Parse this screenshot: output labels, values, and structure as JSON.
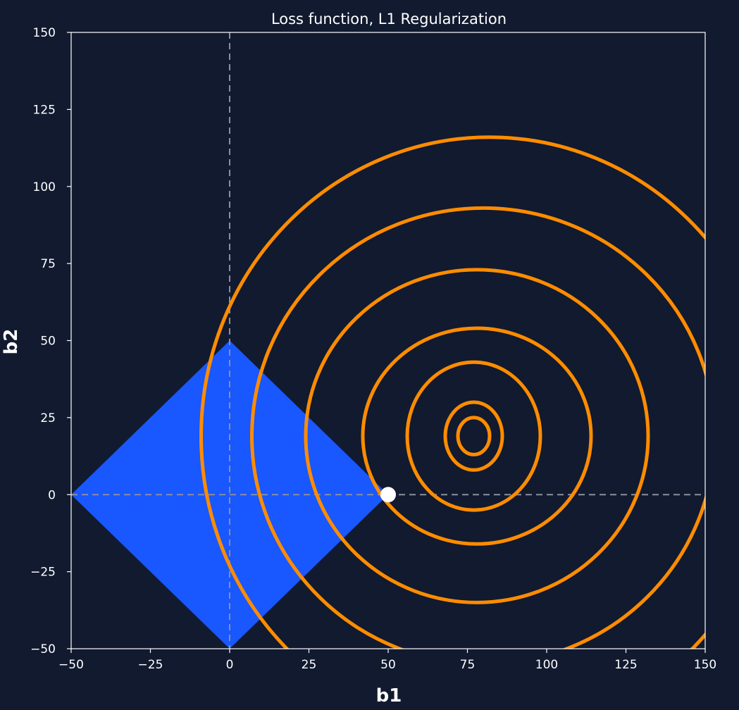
{
  "chart_data": {
    "type": "contour",
    "title": "Loss function, L1 Regularization",
    "xlabel": "b1",
    "ylabel": "b2",
    "xlim": [
      -50,
      150
    ],
    "ylim": [
      -50,
      150
    ],
    "xticks": [
      -50,
      -25,
      0,
      25,
      50,
      75,
      100,
      125,
      150
    ],
    "yticks": [
      -50,
      -25,
      0,
      25,
      50,
      75,
      100,
      125,
      150
    ],
    "constraint_region": {
      "shape": "L1 diamond",
      "vertices": [
        [
          50,
          0
        ],
        [
          0,
          50
        ],
        [
          -50,
          0
        ],
        [
          0,
          -50
        ]
      ],
      "color": "#1957ff"
    },
    "loss_contours": {
      "color": "#ff8c00",
      "levels": [
        {
          "center": [
            77,
            19
          ],
          "rx": 5,
          "ry": 6
        },
        {
          "center": [
            77,
            19
          ],
          "rx": 9,
          "ry": 11
        },
        {
          "center": [
            77,
            19
          ],
          "rx": 21,
          "ry": 24
        },
        {
          "center": [
            78,
            19
          ],
          "rx": 36,
          "ry": 35
        },
        {
          "center": [
            78,
            19
          ],
          "rx": 54,
          "ry": 54
        },
        {
          "center": [
            80,
            19
          ],
          "rx": 73,
          "ry": 74
        },
        {
          "center": [
            82,
            19
          ],
          "rx": 91,
          "ry": 97
        }
      ]
    },
    "reference_lines": [
      {
        "orientation": "vertical",
        "value": 0,
        "style": "dashed",
        "color": "#8a8f9c"
      },
      {
        "orientation": "horizontal",
        "value": 0,
        "style": "dashed",
        "color": "#8a8f9c"
      }
    ],
    "solution_point": {
      "x": 50,
      "y": 0,
      "color": "#ffffff"
    },
    "background": "#111a2f",
    "axis_color": "#ffffff",
    "grid": false,
    "legend": "none"
  }
}
